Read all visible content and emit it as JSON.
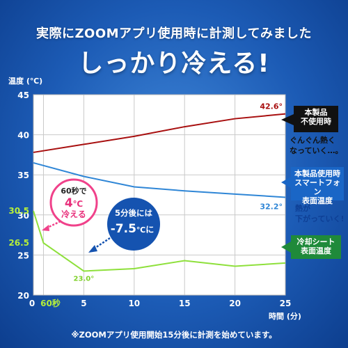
{
  "headline": {
    "line1": "実際にZOOMアプリ使用時に計測してみました",
    "line2": "しっかり冷える!"
  },
  "footnote": "※ZOOMアプリ使用開始15分後に計測を始めています。",
  "legend_boxes": {
    "unused": {
      "line1": "本製品",
      "line2": "不使用時",
      "color": "#111111"
    },
    "unused_note": {
      "line1": "ぐんぐん熱く",
      "line2": "なっていく…。"
    },
    "phone": {
      "line1": "本製品使用時",
      "line2": "スマートフォン",
      "line3": "表面温度",
      "color": "#1a66c6"
    },
    "phone_note": {
      "line1": "熱が",
      "line2": "下がっていく!"
    },
    "sheet": {
      "line1": "冷却シート",
      "line2": "表面温度",
      "color": "#1f8a3a"
    }
  },
  "callouts": {
    "sixty": {
      "line1": "60秒で",
      "value": "4",
      "unit": "℃",
      "line3": "冷える"
    },
    "five": {
      "line1": "5分後には",
      "value": "-7.5",
      "unit": "℃",
      "suffix": "に"
    }
  },
  "chart_data": {
    "type": "line",
    "ylabel": "温度 (℃)",
    "xlabel": "時間 (分)",
    "xlim": [
      0,
      25
    ],
    "ylim": [
      20,
      45
    ],
    "x_ticks": [
      {
        "value": 0,
        "label": "0"
      },
      {
        "value": 1,
        "label": "60秒"
      },
      {
        "value": 5,
        "label": "5"
      },
      {
        "value": 10,
        "label": "10"
      },
      {
        "value": 15,
        "label": "15"
      },
      {
        "value": 20,
        "label": "20"
      },
      {
        "value": 25,
        "label": "25"
      }
    ],
    "y_ticks": [
      20,
      25,
      30,
      35,
      40,
      45
    ],
    "extra_y_labels": [
      {
        "value": 30.5,
        "label": "30.5",
        "color": "#b6ef3a"
      },
      {
        "value": 26.5,
        "label": "26.5",
        "color": "#b6ef3a"
      }
    ],
    "grid": true,
    "series": [
      {
        "color": "#a80f0f",
        "points": [
          [
            0,
            37.8
          ],
          [
            5,
            38.8
          ],
          [
            10,
            39.8
          ],
          [
            15,
            41.0
          ],
          [
            20,
            42.0
          ],
          [
            25,
            42.6
          ]
        ],
        "end_label": "42.6°"
      },
      {
        "color": "#2f86d6",
        "points": [
          [
            0,
            36.5
          ],
          [
            5,
            34.8
          ],
          [
            10,
            33.5
          ],
          [
            15,
            33.0
          ],
          [
            20,
            32.6
          ],
          [
            25,
            32.2
          ]
        ],
        "end_label": "32.2°"
      },
      {
        "color": "#8ee03b",
        "points": [
          [
            0,
            30.5
          ],
          [
            1,
            26.5
          ],
          [
            5,
            23.0
          ],
          [
            10,
            23.3
          ],
          [
            15,
            24.3
          ],
          [
            20,
            23.6
          ],
          [
            25,
            24.0
          ]
        ],
        "point_labels": [
          {
            "x": 5,
            "y": 23.0,
            "label": "23.0°"
          }
        ]
      }
    ]
  }
}
